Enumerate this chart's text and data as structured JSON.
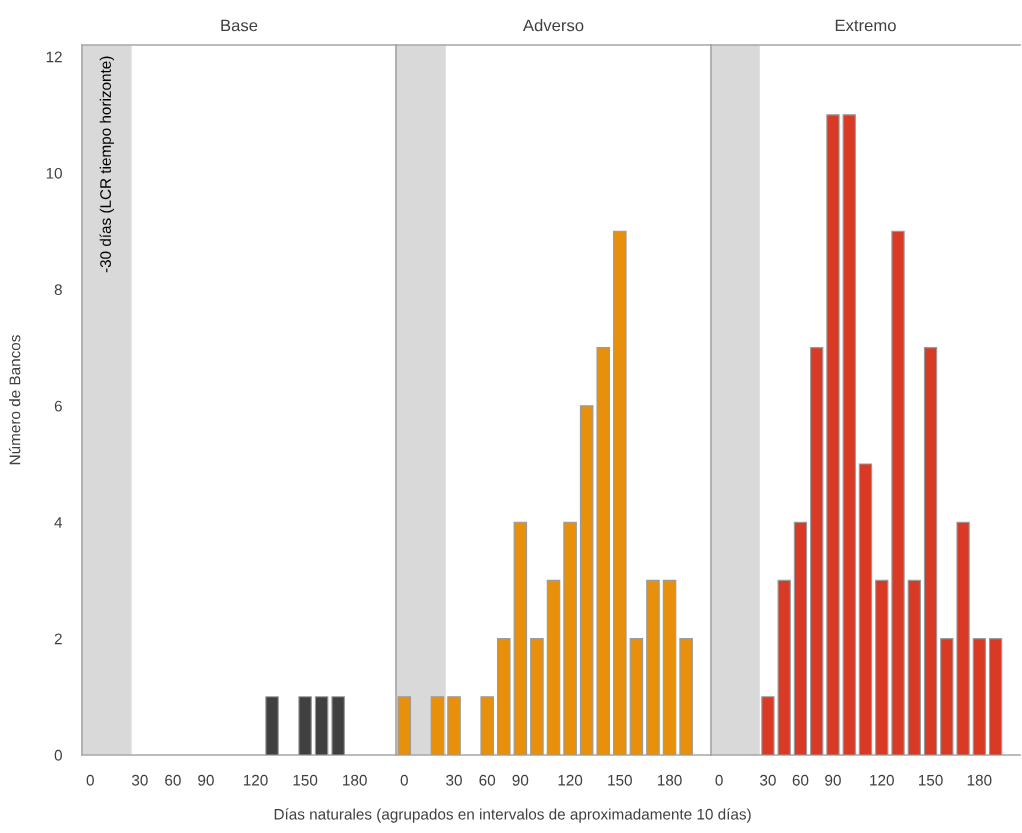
{
  "chart_data": [
    {
      "type": "bar",
      "title": "Base",
      "ylabel": "Número de Bancos",
      "categories": [
        "0",
        null,
        null,
        "30",
        null,
        "60",
        null,
        "90",
        null,
        null,
        "120",
        null,
        null,
        "150",
        null,
        null,
        "180",
        null,
        null
      ],
      "values": [
        null,
        null,
        null,
        null,
        null,
        null,
        null,
        null,
        null,
        null,
        null,
        1,
        null,
        1,
        1,
        1,
        null,
        null,
        null
      ],
      "color": "#404040",
      "ylim": [
        0,
        12.2
      ],
      "yticks": [
        0,
        2,
        4,
        6,
        8,
        10,
        12
      ],
      "bands": [
        {
          "axis": "x",
          "from": "0",
          "to": "30",
          "label": "-30 días (LCR tiempo horizonte)",
          "color": "#d9d9d9"
        }
      ],
      "grid": false,
      "legend": false
    },
    {
      "type": "bar",
      "title": "Adverso",
      "xlabel": "Días naturales (agrupados en intervalos de aproximadamente 10 días)",
      "categories": [
        "0",
        null,
        null,
        "30",
        null,
        "60",
        null,
        "90",
        null,
        null,
        "120",
        null,
        null,
        "150",
        null,
        null,
        "180",
        null,
        null
      ],
      "values": [
        1,
        null,
        1,
        1,
        null,
        1,
        2,
        4,
        2,
        3,
        4,
        6,
        7,
        9,
        2,
        3,
        3,
        2,
        null
      ],
      "color": "#e8900c",
      "ylim": [
        0,
        12.2
      ],
      "yticks": [
        0,
        2,
        4,
        6,
        8,
        10,
        12
      ],
      "tick_labels": "x",
      "bands": [
        {
          "axis": "x",
          "from": "0",
          "to": "30",
          "color": "#d9d9d9"
        }
      ],
      "grid": false,
      "legend": false
    },
    {
      "type": "bar",
      "title": "Extremo",
      "categories": [
        "0",
        null,
        null,
        "30",
        null,
        "60",
        null,
        "90",
        null,
        null,
        "120",
        null,
        null,
        "150",
        null,
        null,
        "180",
        null,
        null
      ],
      "values": [
        null,
        null,
        null,
        1,
        3,
        4,
        7,
        11,
        11,
        5,
        3,
        9,
        3,
        7,
        2,
        4,
        2,
        2,
        null
      ],
      "color": "#d93a26",
      "ylim": [
        0,
        12.2
      ],
      "yticks": [
        0,
        2,
        4,
        6,
        8,
        10,
        12
      ],
      "tick_labels": "x",
      "bands": [
        {
          "axis": "x",
          "from": "0",
          "to": "30",
          "color": "#d9d9d9"
        }
      ],
      "grid": false,
      "legend": false
    }
  ]
}
